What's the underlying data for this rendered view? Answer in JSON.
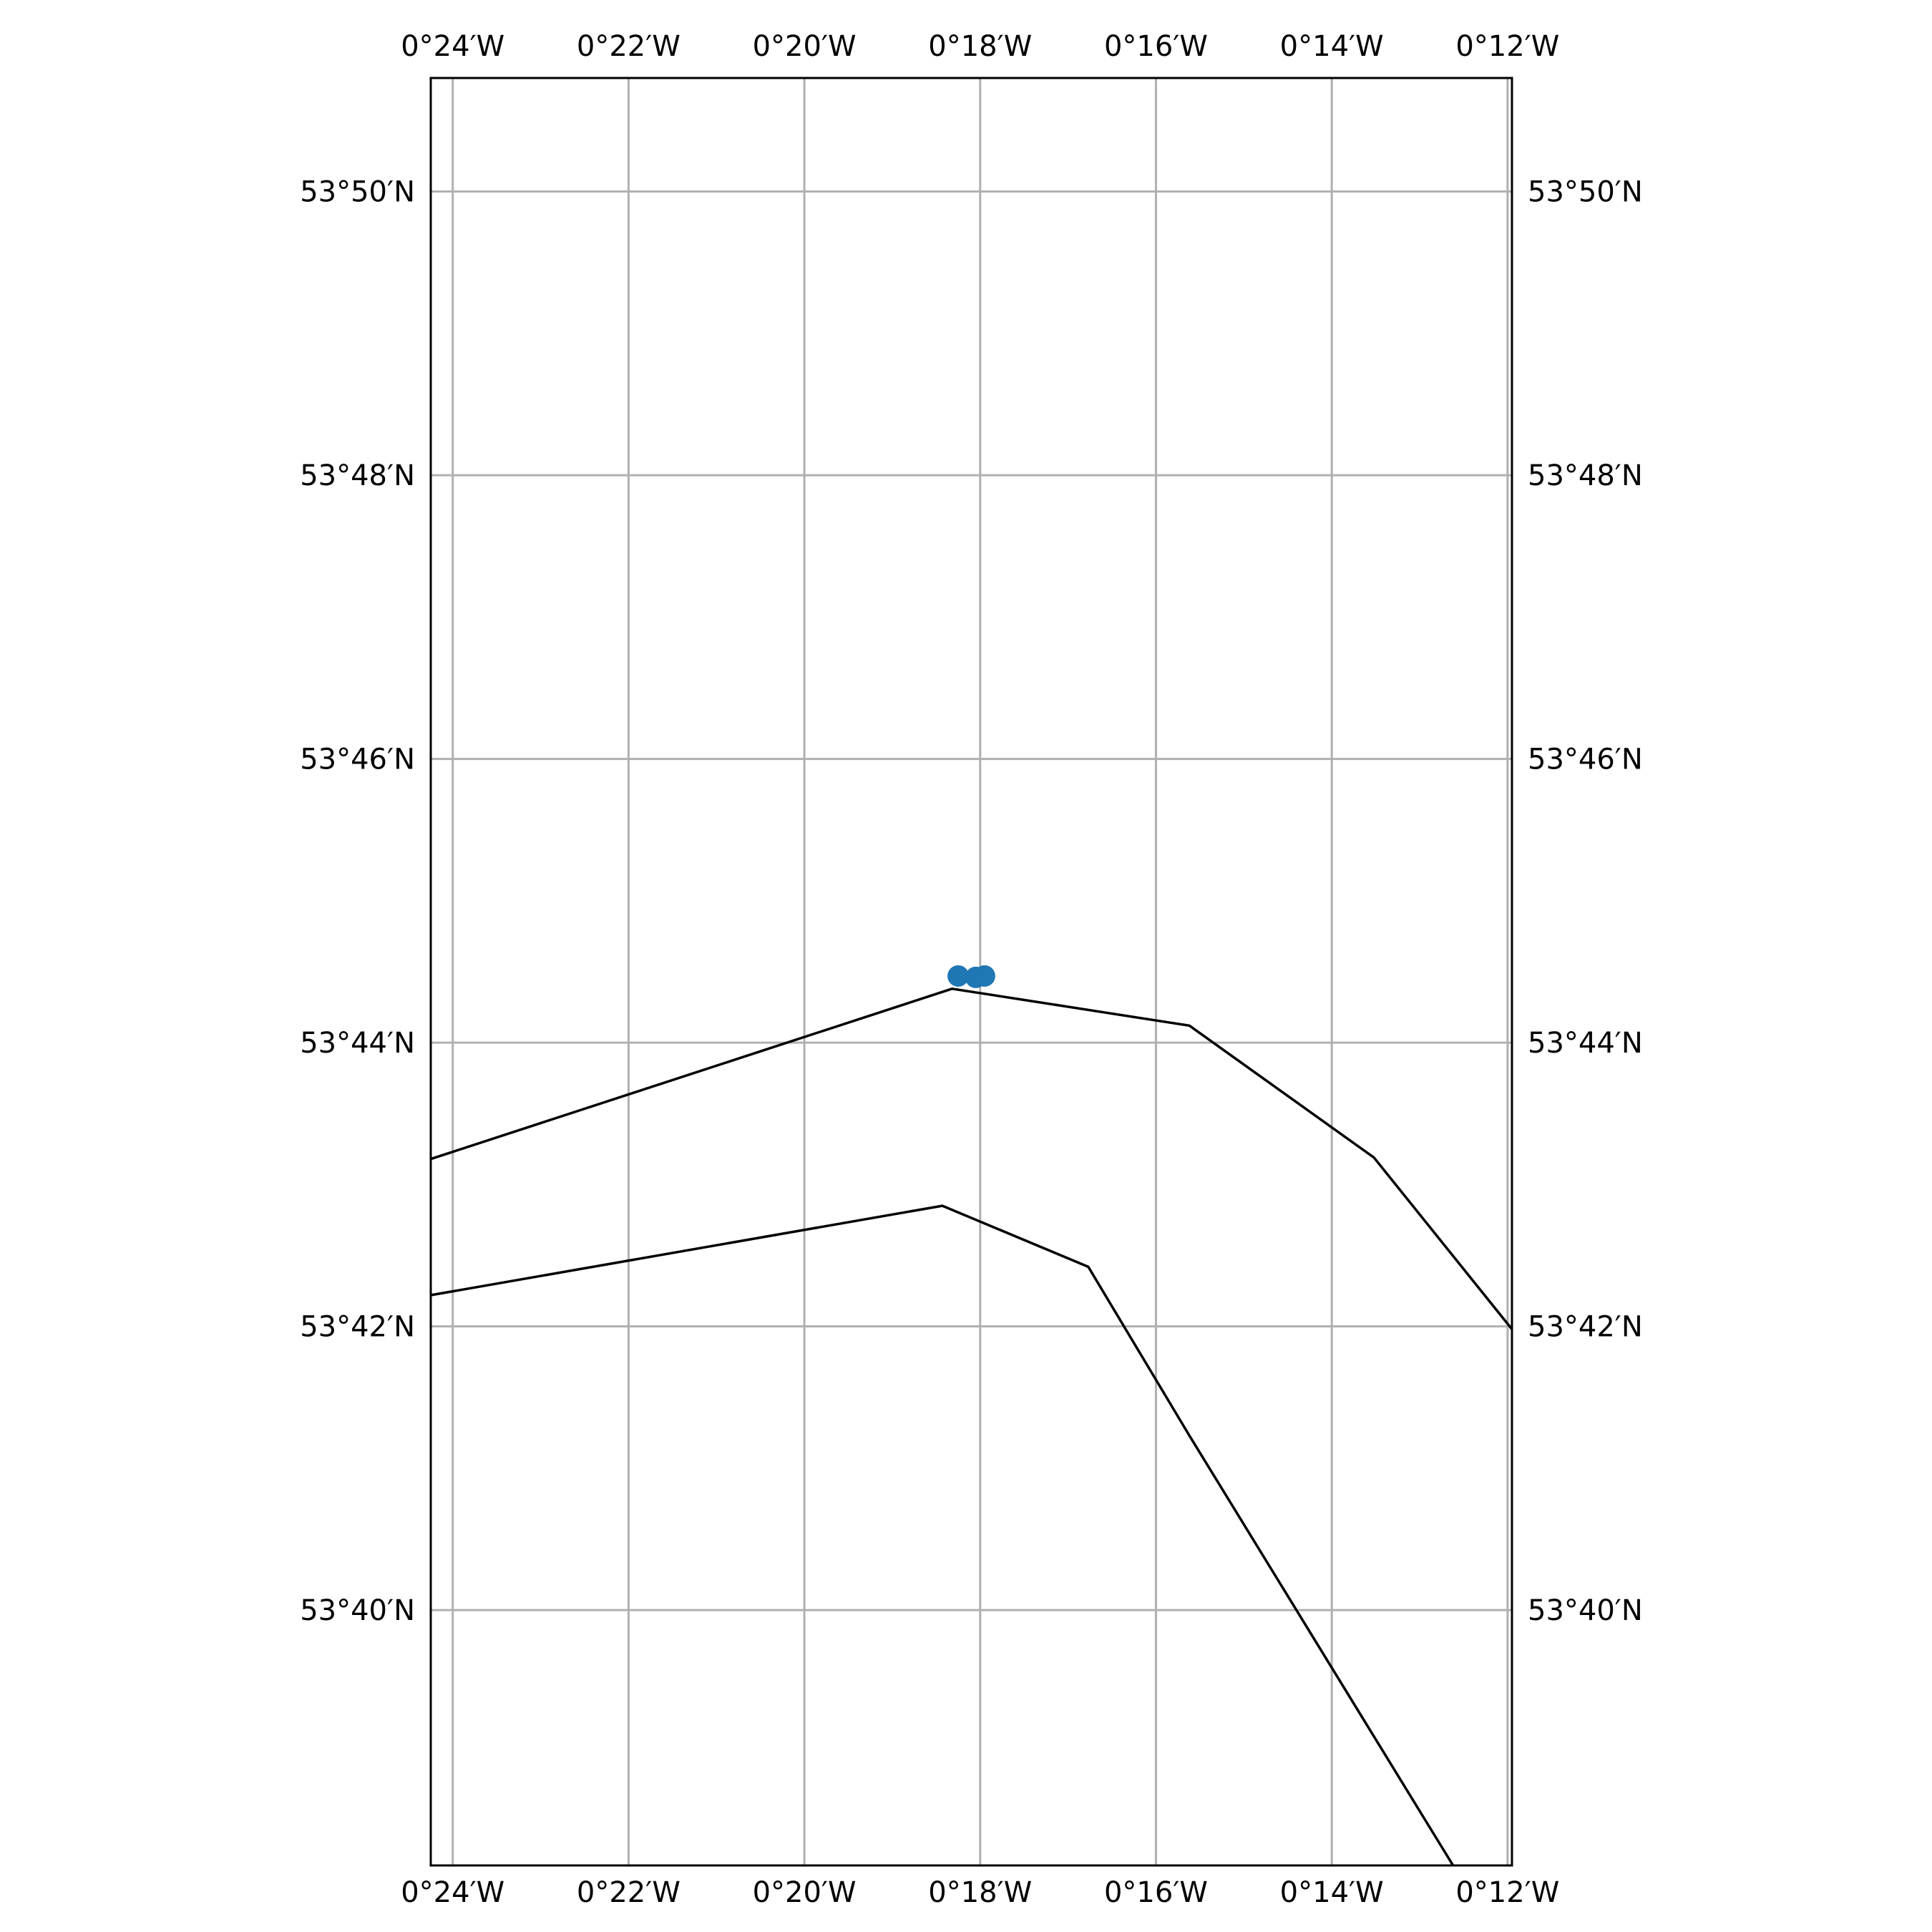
{
  "map": {
    "projection": "PlateCarree",
    "extent": {
      "lon_min": -24.25,
      "lon_max": -11.95,
      "lat_min": 38.2,
      "lat_max": 50.8,
      "units": "arcminutes (negative = W)"
    },
    "gridlines": true,
    "colors": {
      "gridline": "#b0b0b0",
      "frame": "#000000",
      "coastline": "#000000",
      "marker": "#1f77b4"
    }
  },
  "longitude_ticks": [
    {
      "value": -24,
      "label": "0°24′W"
    },
    {
      "value": -22,
      "label": "0°22′W"
    },
    {
      "value": -20,
      "label": "0°20′W"
    },
    {
      "value": -18,
      "label": "0°18′W"
    },
    {
      "value": -16,
      "label": "0°16′W"
    },
    {
      "value": -14,
      "label": "0°14′W"
    },
    {
      "value": -12,
      "label": "0°12′W"
    }
  ],
  "latitude_ticks": [
    {
      "value": 50,
      "label": "53°50′N"
    },
    {
      "value": 48,
      "label": "53°48′N"
    },
    {
      "value": 46,
      "label": "53°46′N"
    },
    {
      "value": 44,
      "label": "53°44′N"
    },
    {
      "value": 42,
      "label": "53°42′N"
    },
    {
      "value": 40,
      "label": "53°40′N"
    }
  ],
  "coastlines": [
    {
      "name": "north-shore",
      "points": [
        [
          -24.25,
          43.18
        ],
        [
          -18.32,
          44.38
        ],
        [
          -15.62,
          44.12
        ],
        [
          -13.52,
          43.19
        ],
        [
          -11.95,
          41.98
        ]
      ]
    },
    {
      "name": "south-shore",
      "points": [
        [
          -24.25,
          42.22
        ],
        [
          -18.43,
          42.85
        ],
        [
          -16.77,
          42.42
        ],
        [
          -15.62,
          41.23
        ],
        [
          -12.62,
          38.2
        ]
      ]
    }
  ],
  "markers": [
    {
      "lon": -18.25,
      "lat": 44.47
    },
    {
      "lon": -18.05,
      "lat": 44.46
    },
    {
      "lon": -17.95,
      "lat": 44.47
    }
  ]
}
